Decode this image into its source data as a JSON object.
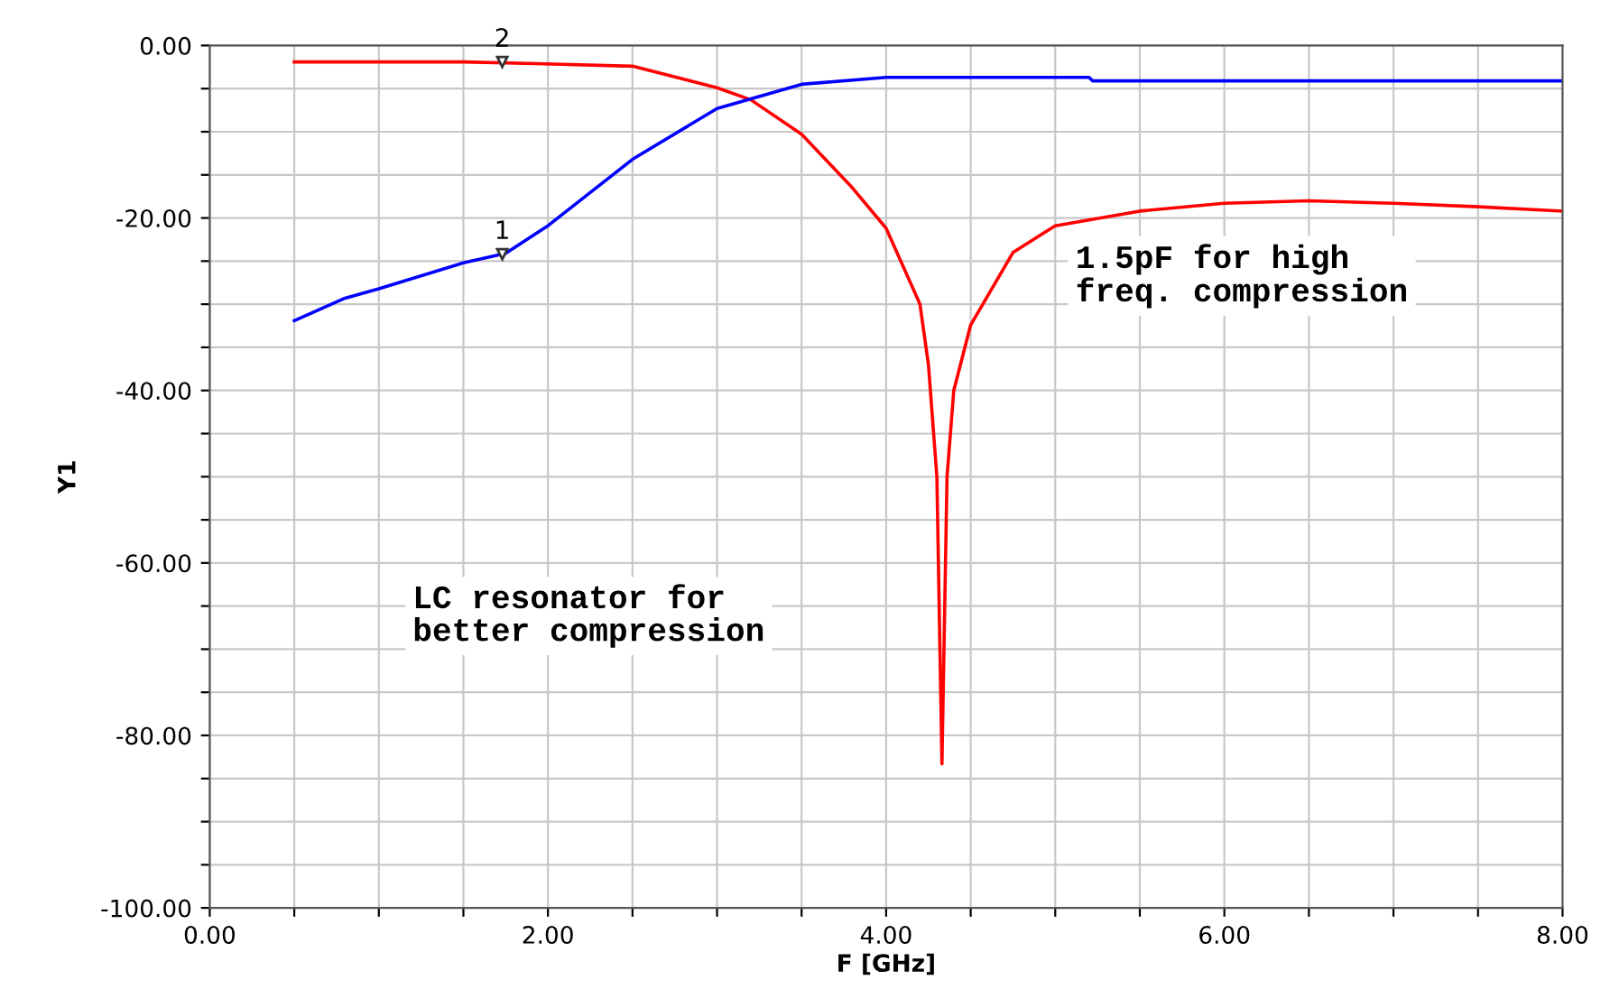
{
  "chart_data": {
    "type": "line",
    "xlabel": "F [GHz]",
    "ylabel": "Y1",
    "xlim": [
      0,
      8
    ],
    "ylim": [
      -100,
      0
    ],
    "xticks": [
      {
        "value": 0,
        "label": "0.00"
      },
      {
        "value": 0.5,
        "label": null
      },
      {
        "value": 1,
        "label": null
      },
      {
        "value": 1.5,
        "label": null
      },
      {
        "value": 2,
        "label": "2.00"
      },
      {
        "value": 2.5,
        "label": null
      },
      {
        "value": 3,
        "label": null
      },
      {
        "value": 3.5,
        "label": null
      },
      {
        "value": 4,
        "label": "4.00"
      },
      {
        "value": 4.5,
        "label": null
      },
      {
        "value": 5,
        "label": null
      },
      {
        "value": 5.5,
        "label": null
      },
      {
        "value": 6,
        "label": "6.00"
      },
      {
        "value": 6.5,
        "label": null
      },
      {
        "value": 7,
        "label": null
      },
      {
        "value": 7.5,
        "label": null
      },
      {
        "value": 8,
        "label": "8.00"
      }
    ],
    "yticks": [
      {
        "value": -100,
        "label": "-100.00"
      },
      {
        "value": -95,
        "label": null
      },
      {
        "value": -90,
        "label": null
      },
      {
        "value": -85,
        "label": null
      },
      {
        "value": -80,
        "label": "-80.00"
      },
      {
        "value": -75,
        "label": null
      },
      {
        "value": -70,
        "label": null
      },
      {
        "value": -65,
        "label": null
      },
      {
        "value": -60,
        "label": "-60.00"
      },
      {
        "value": -55,
        "label": null
      },
      {
        "value": -50,
        "label": null
      },
      {
        "value": -45,
        "label": null
      },
      {
        "value": -40,
        "label": "-40.00"
      },
      {
        "value": -35,
        "label": null
      },
      {
        "value": -30,
        "label": null
      },
      {
        "value": -25,
        "label": null
      },
      {
        "value": -20,
        "label": "-20.00"
      },
      {
        "value": -15,
        "label": null
      },
      {
        "value": -10,
        "label": null
      },
      {
        "value": -5,
        "label": null
      },
      {
        "value": 0,
        "label": "0.00"
      }
    ],
    "grid": true,
    "legend": false,
    "line_style": "solid",
    "series": [
      {
        "color": "#ff0000",
        "x": [
          0.5,
          1.0,
          1.5,
          1.93,
          2.5,
          3.0,
          3.2,
          3.5,
          3.8,
          4.0,
          4.2,
          4.25,
          4.3,
          4.33,
          4.36,
          4.4,
          4.5,
          4.75,
          5.0,
          5.5,
          6.0,
          6.5,
          7.0,
          7.5,
          8.0
        ],
        "values": [
          -1.9,
          -1.9,
          -1.9,
          -2.1,
          -2.4,
          -4.9,
          -6.3,
          -10.3,
          -16.5,
          -21.2,
          -30,
          -37,
          -50,
          -83.3,
          -50,
          -40,
          -32.4,
          -24,
          -20.9,
          -19.2,
          -18.3,
          -18.0,
          -18.3,
          -18.7,
          -19.2
        ]
      },
      {
        "color": "#0000ff",
        "x": [
          0.5,
          0.8,
          1.0,
          1.5,
          1.75,
          2.0,
          2.5,
          3.0,
          3.5,
          4.0,
          5.2,
          5.22,
          8.0
        ],
        "values": [
          -31.9,
          -29.3,
          -28.2,
          -25.2,
          -24.1,
          -20.9,
          -13.2,
          -7.3,
          -4.5,
          -3.7,
          -3.7,
          -4.1,
          -4.1
        ]
      }
    ],
    "annotations": [
      {
        "text": "2",
        "x": 1.73,
        "y": -1.9
      },
      {
        "text": "1",
        "x": 1.73,
        "y": -24.2
      },
      "1.5pF for high\nfreq. compression",
      "LC resonator for\nbetter compression"
    ]
  }
}
